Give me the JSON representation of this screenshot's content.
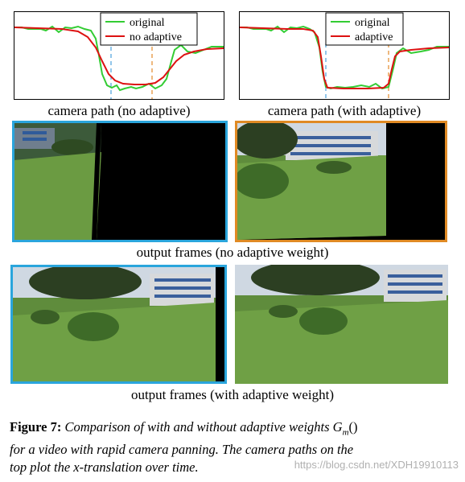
{
  "plots": [
    {
      "caption": "camera path (no adaptive)",
      "legend": [
        {
          "label": "original",
          "color": "#33cc33"
        },
        {
          "label": "no adaptive",
          "color": "#dd1111"
        }
      ],
      "marker_colors": [
        "#4aa0dd",
        "#e38a2a"
      ]
    },
    {
      "caption": "camera path (with adaptive)",
      "legend": [
        {
          "label": "original",
          "color": "#33cc33"
        },
        {
          "label": "adaptive",
          "color": "#dd1111"
        }
      ],
      "marker_colors": [
        "#4aa0dd",
        "#e38a2a"
      ]
    }
  ],
  "frame_rows": [
    {
      "caption": "output frames (no adaptive weight)",
      "left_border": "#2aa5dc",
      "right_border": "#e08a24"
    },
    {
      "caption": "output frames (with adaptive weight)",
      "left_border": "#2aa5dc",
      "right_border": "none"
    }
  ],
  "figure_caption": {
    "label": "Figure 7:",
    "text_line1": "Comparison of with and without adaptive weights",
    "math": "G",
    "math_sub": "m",
    "math_tail": "()",
    "text_line2": "for a video with rapid camera panning. The camera paths on the",
    "text_line3": "top plot the x-translation over time."
  },
  "watermark": "https://blog.csdn.net/XDH19910113"
}
